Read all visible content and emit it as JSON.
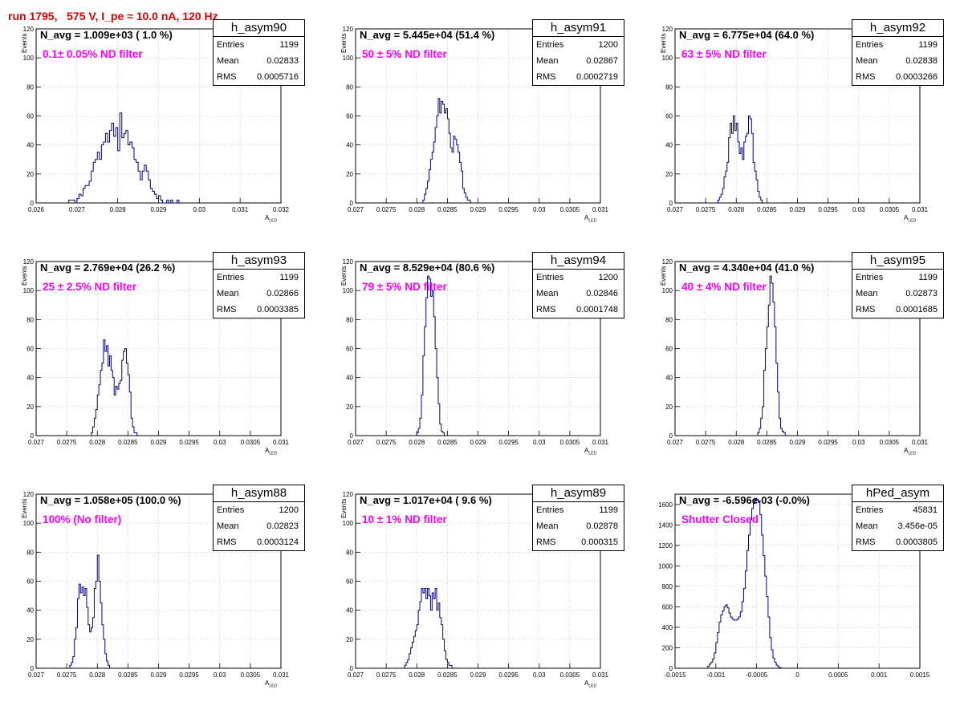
{
  "title": "run 1795,   575 V, I_pe ≈ 10.0 nA, 120 Hz",
  "chart_data": [
    {
      "type": "bar",
      "name": "h_asym90",
      "n_avg": "N_avg = 1.009e+03 ( 1.0 %)",
      "filter": "0.1± 0.05% ND filter",
      "ylabel": "Events",
      "xlabel": "A",
      "xlabel_sub": "LED",
      "xlim": [
        0.026,
        0.032
      ],
      "ylim": [
        0,
        120
      ],
      "xticks": [
        "0.026",
        "0.027",
        "0.028",
        "0.029",
        "0.03",
        "0.031",
        "0.032"
      ],
      "yticks": [
        "0",
        "20",
        "40",
        "60",
        "80",
        "100",
        "120"
      ],
      "stats": {
        "Entries": "1199",
        "Mean": "0.02833",
        "RMS": "0.0005716"
      },
      "series": [
        {
          "x0": 0.0268,
          "dx": 5e-05,
          "values": [
            2,
            2,
            2,
            0,
            3,
            6,
            5,
            10,
            12,
            12,
            15,
            22,
            28,
            30,
            35,
            30,
            40,
            42,
            48,
            42,
            50,
            55,
            46,
            52,
            36,
            62,
            45,
            48,
            50,
            40,
            42,
            38,
            30,
            28,
            22,
            16,
            22,
            26,
            22,
            16,
            10,
            8,
            6,
            3,
            5,
            2,
            0,
            0,
            2,
            0,
            2,
            0,
            0,
            2
          ]
        }
      ]
    },
    {
      "type": "bar",
      "name": "h_asym91",
      "n_avg": "N_avg = 5.445e+04 (51.4 %)",
      "filter": "50 ± 5% ND filter",
      "ylabel": "Events",
      "xlabel": "A",
      "xlabel_sub": "LED",
      "xlim": [
        0.027,
        0.031
      ],
      "ylim": [
        0,
        120
      ],
      "xticks": [
        "0.027",
        "0.0275",
        "0.028",
        "0.0285",
        "0.029",
        "0.0295",
        "0.03",
        "0.0305",
        "0.031"
      ],
      "yticks": [
        "0",
        "20",
        "40",
        "60",
        "80",
        "100",
        "120"
      ],
      "stats": {
        "Entries": "1200",
        "Mean": "0.02867",
        "RMS": "0.0002719"
      },
      "series": [
        {
          "x0": 0.0281,
          "dx": 2.5e-05,
          "values": [
            2,
            6,
            10,
            15,
            23,
            30,
            35,
            42,
            52,
            60,
            72,
            62,
            70,
            68,
            62,
            65,
            58,
            48,
            38,
            35,
            46,
            44,
            40,
            35,
            28,
            22,
            10,
            7,
            4,
            2,
            2
          ]
        }
      ]
    },
    {
      "type": "bar",
      "name": "h_asym92",
      "n_avg": "N_avg = 6.775e+04 (64.0 %)",
      "filter": "63 ± 5% ND filter",
      "ylabel": "Events",
      "xlabel": "A",
      "xlabel_sub": "LED",
      "xlim": [
        0.027,
        0.031
      ],
      "ylim": [
        0,
        120
      ],
      "xticks": [
        "0.027",
        "0.0275",
        "0.028",
        "0.0285",
        "0.029",
        "0.0295",
        "0.03",
        "0.0305",
        "0.031"
      ],
      "yticks": [
        "0",
        "20",
        "40",
        "60",
        "80",
        "100",
        "120"
      ],
      "stats": {
        "Entries": "1199",
        "Mean": "0.02838",
        "RMS": "0.0003266"
      },
      "series": [
        {
          "x0": 0.0277,
          "dx": 2.5e-05,
          "values": [
            2,
            4,
            6,
            10,
            18,
            22,
            28,
            45,
            55,
            48,
            60,
            50,
            55,
            42,
            34,
            38,
            30,
            42,
            46,
            48,
            60,
            58,
            48,
            28,
            22,
            16,
            8,
            4,
            2
          ]
        }
      ]
    },
    {
      "type": "bar",
      "name": "h_asym93",
      "n_avg": "N_avg = 2.769e+04 (26.2 %)",
      "filter": "25 ± 2.5% ND filter",
      "ylabel": "Events",
      "xlabel": "A",
      "xlabel_sub": "LED",
      "xlim": [
        0.027,
        0.031
      ],
      "ylim": [
        0,
        120
      ],
      "xticks": [
        "0.027",
        "0.0275",
        "0.028",
        "0.0285",
        "0.029",
        "0.0295",
        "0.03",
        "0.0305",
        "0.031"
      ],
      "yticks": [
        "0",
        "20",
        "40",
        "60",
        "80",
        "100",
        "120"
      ],
      "stats": {
        "Entries": "1199",
        "Mean": "0.02866",
        "RMS": "0.0003385"
      },
      "series": [
        {
          "x0": 0.0279,
          "dx": 2.5e-05,
          "values": [
            2,
            6,
            12,
            18,
            28,
            35,
            45,
            50,
            66,
            58,
            62,
            48,
            55,
            45,
            40,
            28,
            34,
            32,
            36,
            38,
            52,
            58,
            60,
            50,
            42,
            30,
            12,
            6,
            2,
            2
          ]
        }
      ]
    },
    {
      "type": "bar",
      "name": "h_asym94",
      "n_avg": "N_avg = 8.529e+04 (80.6 %)",
      "filter": "79 ± 5% ND filter",
      "ylabel": "Events",
      "xlabel": "A",
      "xlabel_sub": "LED",
      "xlim": [
        0.027,
        0.031
      ],
      "ylim": [
        0,
        120
      ],
      "xticks": [
        "0.027",
        "0.0275",
        "0.028",
        "0.0285",
        "0.029",
        "0.0295",
        "0.03",
        "0.0305",
        "0.031"
      ],
      "yticks": [
        "0",
        "20",
        "40",
        "60",
        "80",
        "100",
        "120"
      ],
      "stats": {
        "Entries": "1200",
        "Mean": "0.02846",
        "RMS": "0.0001748"
      },
      "series": [
        {
          "x0": 0.028,
          "dx": 2.5e-05,
          "values": [
            2,
            5,
            12,
            28,
            55,
            75,
            95,
            110,
            108,
            96,
            100,
            82,
            60,
            40,
            22,
            8,
            3,
            2
          ]
        }
      ]
    },
    {
      "type": "bar",
      "name": "h_asym95",
      "n_avg": "N_avg = 4.340e+04 (41.0 %)",
      "filter": "40 ± 4% ND filter",
      "ylabel": "Events",
      "xlabel": "A",
      "xlabel_sub": "LED",
      "xlim": [
        0.027,
        0.031
      ],
      "ylim": [
        0,
        120
      ],
      "xticks": [
        "0.027",
        "0.0275",
        "0.028",
        "0.0285",
        "0.029",
        "0.0295",
        "0.03",
        "0.0305",
        "0.031"
      ],
      "yticks": [
        "0",
        "20",
        "40",
        "60",
        "80",
        "100",
        "120"
      ],
      "stats": {
        "Entries": "1199",
        "Mean": "0.02873",
        "RMS": "0.0001685"
      },
      "series": [
        {
          "x0": 0.02835,
          "dx": 2.5e-05,
          "values": [
            2,
            5,
            12,
            20,
            45,
            60,
            75,
            90,
            110,
            105,
            92,
            75,
            50,
            30,
            12,
            5,
            3,
            2
          ]
        }
      ]
    },
    {
      "type": "bar",
      "name": "h_asym88",
      "n_avg": "N_avg = 1.058e+05 (100.0 %)",
      "filter": "100% (No filter)",
      "ylabel": "Events",
      "xlabel": "A",
      "xlabel_sub": "LED",
      "xlim": [
        0.027,
        0.031
      ],
      "ylim": [
        0,
        120
      ],
      "xticks": [
        "0.027",
        "0.0275",
        "0.028",
        "0.0285",
        "0.029",
        "0.0295",
        "0.03",
        "0.0305",
        "0.031"
      ],
      "yticks": [
        "0",
        "20",
        "40",
        "60",
        "80",
        "100",
        "120"
      ],
      "stats": {
        "Entries": "1200",
        "Mean": "0.02823",
        "RMS": "0.0003124"
      },
      "series": [
        {
          "x0": 0.02755,
          "dx": 2.5e-05,
          "values": [
            2,
            4,
            8,
            20,
            28,
            48,
            58,
            52,
            56,
            50,
            55,
            42,
            30,
            25,
            28,
            35,
            55,
            60,
            78,
            60,
            45,
            30,
            20,
            10,
            5,
            2
          ]
        }
      ]
    },
    {
      "type": "bar",
      "name": "h_asym89",
      "n_avg": "N_avg = 1.017e+04 ( 9.6 %)",
      "filter": "10 ± 1% ND filter",
      "ylabel": "Events",
      "xlabel": "A",
      "xlabel_sub": "LED",
      "xlim": [
        0.027,
        0.031
      ],
      "ylim": [
        0,
        120
      ],
      "xticks": [
        "0.027",
        "0.0275",
        "0.028",
        "0.0285",
        "0.029",
        "0.0295",
        "0.03",
        "0.0305",
        "0.031"
      ],
      "yticks": [
        "0",
        "20",
        "40",
        "60",
        "80",
        "100",
        "120"
      ],
      "stats": {
        "Entries": "1199",
        "Mean": "0.02878",
        "RMS": "0.000315"
      },
      "series": [
        {
          "x0": 0.0278,
          "dx": 2.5e-05,
          "values": [
            2,
            4,
            6,
            10,
            14,
            18,
            22,
            26,
            30,
            40,
            46,
            55,
            52,
            55,
            48,
            55,
            50,
            40,
            52,
            48,
            55,
            40,
            45,
            35,
            30,
            20,
            12,
            6,
            4,
            2,
            2
          ]
        }
      ]
    },
    {
      "type": "bar",
      "name": "hPed_asym",
      "n_avg": "N_avg = -6.596e-03 (-0.0%)",
      "filter": "Shutter Closed",
      "ylabel": "",
      "xlabel": "",
      "xlabel_sub": "",
      "xlim": [
        -0.0015,
        0.0015
      ],
      "ylim": [
        0,
        1700
      ],
      "xticks": [
        "-0.0015",
        "-0.001",
        "-0.0005",
        "0",
        "0.0005",
        "0.001",
        "0.0015"
      ],
      "yticks": [
        "0",
        "200",
        "400",
        "600",
        "800",
        "1000",
        "1200",
        "1400",
        "1600"
      ],
      "stats": {
        "Entries": "45831",
        "Mean": "3.456e-05",
        "RMS": "0.0003805"
      },
      "series": [
        {
          "x0": -0.0011,
          "dx": 2e-05,
          "values": [
            20,
            40,
            60,
            90,
            150,
            250,
            350,
            450,
            520,
            560,
            600,
            620,
            590,
            540,
            500,
            480,
            470,
            470,
            480,
            500,
            550,
            650,
            780,
            950,
            1150,
            1300,
            1450,
            1560,
            1620,
            1660,
            1650,
            1620,
            1500,
            1300,
            1100,
            900,
            700,
            500,
            300,
            180,
            100,
            60,
            30,
            15,
            5
          ]
        }
      ]
    }
  ]
}
